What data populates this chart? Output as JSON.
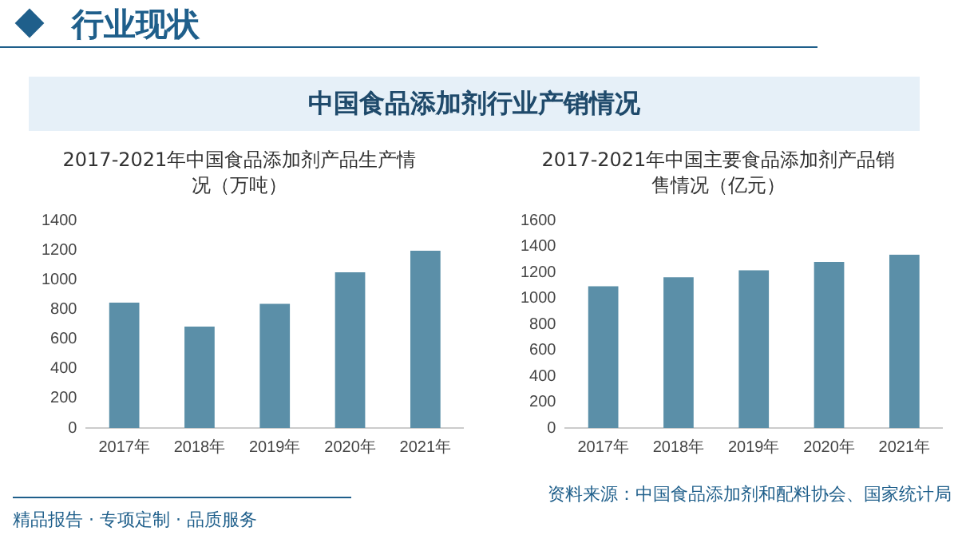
{
  "chart_data": [
    {
      "type": "bar",
      "title": "2017-2021年中国食品添加剂产品生产情况（万吨）",
      "annotations": [
        "行业现状",
        "中国食品添加剂行业产销情况"
      ],
      "categories": [
        "2017年",
        "2018年",
        "2019年",
        "2020年",
        "2021年"
      ],
      "values": [
        845,
        684,
        837,
        1050,
        1195
      ],
      "color": "#5b8fa8",
      "ylim": [
        0,
        1400
      ],
      "yticks": [
        0,
        200,
        400,
        600,
        800,
        1000,
        1200,
        1400
      ],
      "grid": false,
      "legend": false
    },
    {
      "type": "bar",
      "title": "2017-2021年中国主要食品添加剂产品销售情况（亿元）",
      "annotations": [
        "资料来源：中国食品添加剂和配料协会、国家统计局",
        "精品报告 · 专项定制 · 品质服务"
      ],
      "categories": [
        "2017年",
        "2018年",
        "2019年",
        "2020年",
        "2021年"
      ],
      "values": [
        1093,
        1161,
        1216,
        1280,
        1335
      ],
      "color": "#5b8fa8",
      "ylim": [
        0,
        1600
      ],
      "yticks": [
        0,
        200,
        400,
        600,
        800,
        1000,
        1200,
        1400,
        1600
      ],
      "grid": false,
      "legend": false
    }
  ]
}
